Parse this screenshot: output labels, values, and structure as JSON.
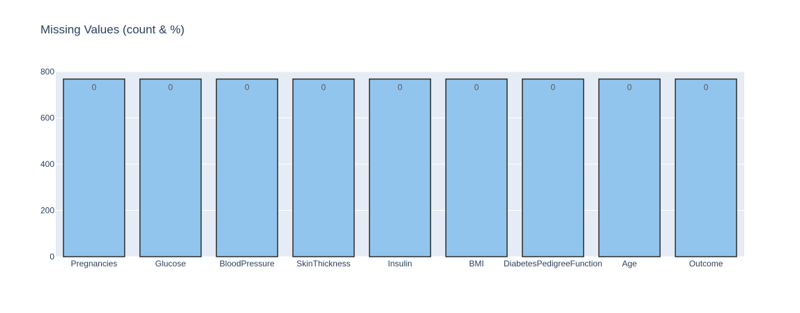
{
  "chart_data": {
    "type": "bar",
    "title": "Missing Values (count & %)",
    "xlabel": "",
    "ylabel": "",
    "categories": [
      "Pregnancies",
      "Glucose",
      "BloodPressure",
      "SkinThickness",
      "Insulin",
      "BMI",
      "DiabetesPedigreeFunction",
      "Age",
      "Outcome"
    ],
    "values": [
      768,
      768,
      768,
      768,
      768,
      768,
      768,
      768,
      768
    ],
    "data_labels": [
      "0",
      "0",
      "0",
      "0",
      "0",
      "0",
      "0",
      "0",
      "0"
    ],
    "ylim": [
      0,
      800
    ],
    "yticks": [
      "0",
      "200",
      "400",
      "600",
      "800"
    ],
    "grid": true,
    "colors": {
      "bar_fill": "#92c5ee",
      "bar_stroke": "#2b2b2b",
      "plot_bg": "#e5ecf6",
      "grid": "#ffffff",
      "text": "#2a3f5f"
    }
  }
}
